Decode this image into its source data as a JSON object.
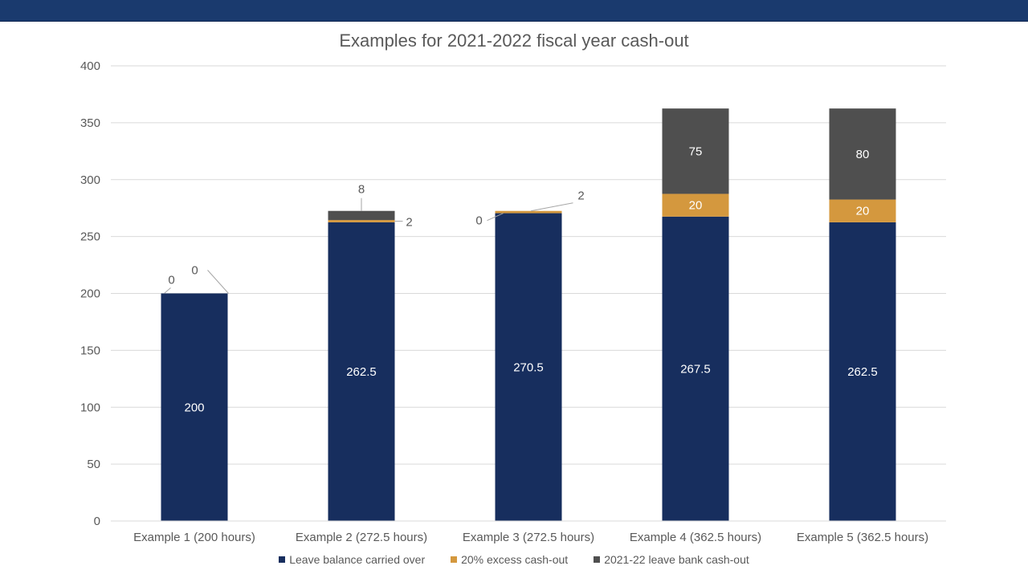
{
  "chart_data": {
    "type": "bar",
    "stacked": true,
    "title": "Examples for 2021-2022 fiscal year cash-out",
    "categories": [
      "Example 1 (200 hours)",
      "Example 2 (272.5 hours)",
      "Example 3 (272.5 hours)",
      "Example 4 (362.5 hours)",
      "Example 5 (362.5 hours)"
    ],
    "series": [
      {
        "name": "Leave balance carried over",
        "color": "#172e5e",
        "values": [
          200,
          262.5,
          270.5,
          267.5,
          262.5
        ]
      },
      {
        "name": "20% excess cash-out",
        "color": "#d4983e",
        "values": [
          0,
          2,
          2,
          20,
          20
        ]
      },
      {
        "name": "2021-22 leave bank cash-out",
        "color": "#4f4f4f",
        "values": [
          0,
          8,
          0,
          75,
          80
        ]
      }
    ],
    "ylim": [
      0,
      400
    ],
    "yticks": [
      0,
      50,
      100,
      150,
      200,
      250,
      300,
      350,
      400
    ],
    "grid": true,
    "legend": "bottom",
    "data_labels": true
  }
}
